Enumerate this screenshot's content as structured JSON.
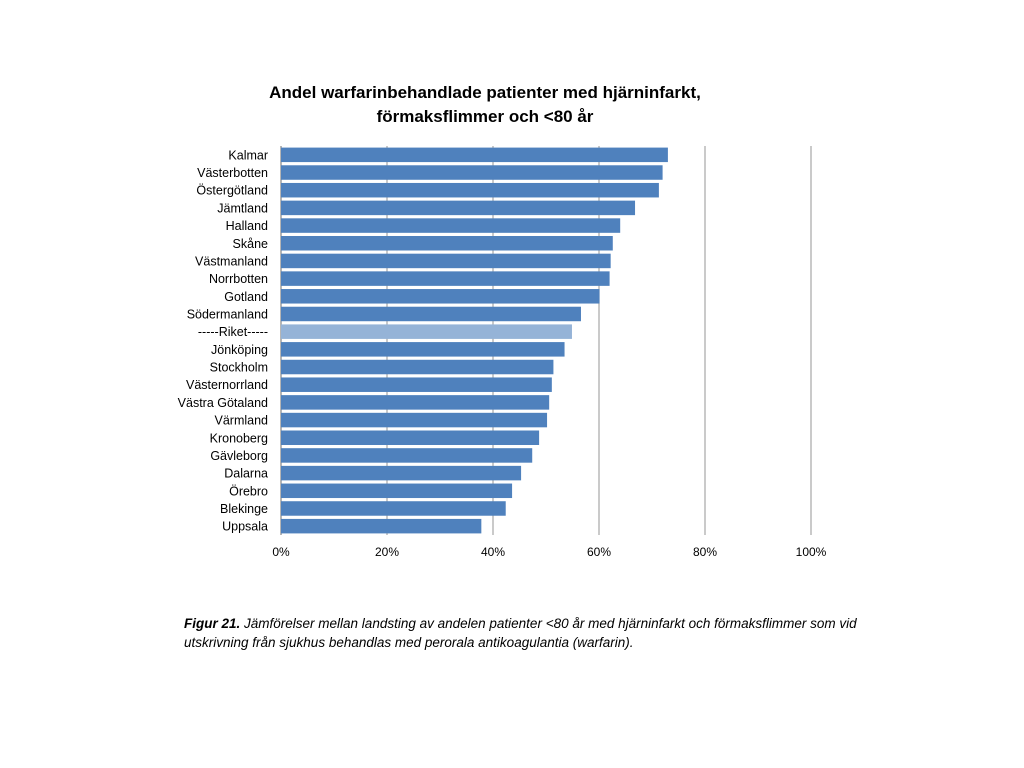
{
  "chart_data": {
    "type": "bar",
    "orientation": "horizontal",
    "title_lines": [
      "Andel warfarinbehandlade  patienter med hjärninfarkt,",
      "förmaksflimmer  och  <80 år"
    ],
    "categories": [
      "Kalmar",
      "Västerbotten",
      "Östergötland",
      "Jämtland",
      "Halland",
      "Skåne",
      "Västmanland",
      "Norrbotten",
      "Gotland",
      "Södermanland",
      "-----Riket-----",
      "Jönköping",
      "Stockholm",
      "Västernorrland",
      "Västra Götaland",
      "Värmland",
      "Kronoberg",
      "Gävleborg",
      "Dalarna",
      "Örebro",
      "Blekinge",
      "Uppsala"
    ],
    "values": [
      73,
      72,
      71.3,
      66.8,
      64,
      62.6,
      62.2,
      62,
      60.1,
      56.6,
      54.9,
      53.5,
      51.4,
      51.1,
      50.6,
      50.2,
      48.7,
      47.4,
      45.3,
      43.6,
      42.4,
      37.8
    ],
    "highlight_category": "-----Riket-----",
    "x_ticks": [
      "0%",
      "20%",
      "40%",
      "60%",
      "80%",
      "100%"
    ],
    "xlim": [
      0,
      100
    ],
    "grid": true,
    "legend": "none",
    "colors": {
      "bar": "#4f81bd",
      "highlight": "#95b3d7",
      "grid": "#a6a6a6",
      "axis": "#868686"
    }
  },
  "caption": {
    "figure_label": "Figur 21.",
    "text": " Jämförelser mellan landsting av andelen patienter <80 år  med hjärninfarkt och förmaksflimmer som vid utskrivning från sjukhus behandlas med perorala antikoagulantia (warfarin)."
  }
}
